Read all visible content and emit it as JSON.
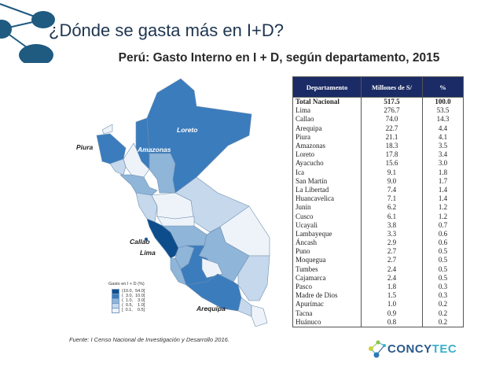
{
  "slide": {
    "title": "¿Dónde se gasta más en I+D?",
    "subtitle": "Perú: Gasto Interno en I + D, según departamento, 2015",
    "source": "Fuente: I Censo Nacional de Investigación y Desarrollo 2016.",
    "logo_text_main": "CONCY",
    "logo_text_accent": "TEC"
  },
  "map": {
    "labels": {
      "loreto": "Loreto",
      "amazonas": "Amazonas",
      "piura": "Piura",
      "callao": "Callao",
      "lima": "Lima",
      "arequipa": "Arequipa"
    },
    "legend": {
      "title": "Gasto en I + D (%)",
      "items": [
        {
          "label": "(10.0,  54.0]",
          "color": "#0e4d8c"
        },
        {
          "label": "(  3.0,  10.0]",
          "color": "#3b7cbd"
        },
        {
          "label": "(  1.0,    3.0]",
          "color": "#8fb5d9"
        },
        {
          "label": "(  0.5,    1.0]",
          "color": "#c6d8ec"
        },
        {
          "label": "[  0.1,    0.5]",
          "color": "#eef3fa"
        }
      ]
    }
  },
  "table": {
    "headers": [
      "Departamento",
      "Millones de S/",
      "%"
    ],
    "total": {
      "dept": "Total Nacional",
      "millones": "517.5",
      "pct": "100.0"
    },
    "rows": [
      {
        "dept": "Lima",
        "millones": "276.7",
        "pct": "53.5"
      },
      {
        "dept": "Callao",
        "millones": "74.0",
        "pct": "14.3"
      },
      {
        "dept": "Arequipa",
        "millones": "22.7",
        "pct": "4.4"
      },
      {
        "dept": "Piura",
        "millones": "21.1",
        "pct": "4.1"
      },
      {
        "dept": "Amazonas",
        "millones": "18.3",
        "pct": "3.5"
      },
      {
        "dept": "Loreto",
        "millones": "17.8",
        "pct": "3.4"
      },
      {
        "dept": "Ayacucho",
        "millones": "15.6",
        "pct": "3.0"
      },
      {
        "dept": "Ica",
        "millones": "9.1",
        "pct": "1.8"
      },
      {
        "dept": "San Martín",
        "millones": "9.0",
        "pct": "1.7"
      },
      {
        "dept": "La Libertad",
        "millones": "7.4",
        "pct": "1.4"
      },
      {
        "dept": "Huancavelica",
        "millones": "7.1",
        "pct": "1.4"
      },
      {
        "dept": "Junín",
        "millones": "6.2",
        "pct": "1.2"
      },
      {
        "dept": "Cusco",
        "millones": "6.1",
        "pct": "1.2"
      },
      {
        "dept": "Ucayali",
        "millones": "3.8",
        "pct": "0.7"
      },
      {
        "dept": "Lambayeque",
        "millones": "3.3",
        "pct": "0.6"
      },
      {
        "dept": "Áncash",
        "millones": "2.9",
        "pct": "0.6"
      },
      {
        "dept": "Puno",
        "millones": "2.7",
        "pct": "0.5"
      },
      {
        "dept": "Moquegua",
        "millones": "2.7",
        "pct": "0.5"
      },
      {
        "dept": "Tumbes",
        "millones": "2.4",
        "pct": "0.5"
      },
      {
        "dept": "Cajamarca",
        "millones": "2.4",
        "pct": "0.5"
      },
      {
        "dept": "Pasco",
        "millones": "1.8",
        "pct": "0.3"
      },
      {
        "dept": "Madre de Dios",
        "millones": "1.5",
        "pct": "0.3"
      },
      {
        "dept": "Apurímac",
        "millones": "1.0",
        "pct": "0.2"
      },
      {
        "dept": "Tacna",
        "millones": "0.9",
        "pct": "0.2"
      },
      {
        "dept": "Huánuco",
        "millones": "0.8",
        "pct": "0.2"
      }
    ]
  }
}
